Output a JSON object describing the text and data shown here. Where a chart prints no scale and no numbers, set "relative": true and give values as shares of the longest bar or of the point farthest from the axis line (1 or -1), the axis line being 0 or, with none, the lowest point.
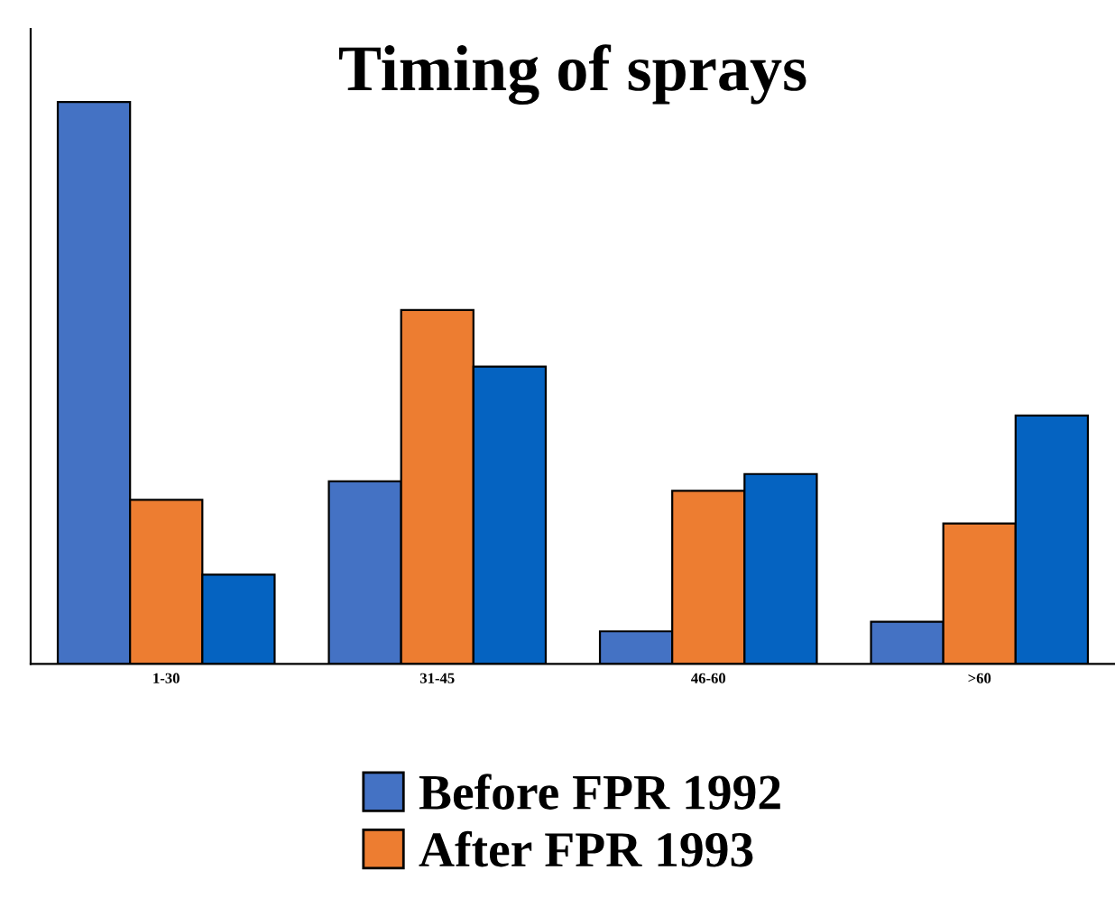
{
  "chart_data": {
    "type": "bar",
    "title": "Timing of sprays",
    "relative": true,
    "categories": [
      "1-30",
      "31-45",
      "46-60",
      ">60"
    ],
    "series": [
      {
        "name": "Before FPR 1992",
        "color": "#4472c4",
        "values": [
          1.0,
          0.325,
          0.058,
          0.075
        ]
      },
      {
        "name": "After FPR 1993",
        "color": "#ed7d31",
        "values": [
          0.292,
          0.63,
          0.308,
          0.25
        ]
      },
      {
        "color": "#0563c1",
        "values": [
          0.159,
          0.529,
          0.338,
          0.442
        ]
      }
    ],
    "legend": "bottom",
    "grid": false
  }
}
